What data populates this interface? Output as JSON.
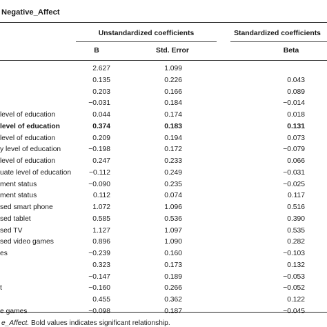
{
  "table_title": "Negative_Affect",
  "group_headers": {
    "unstandardized": "Unstandardized coefficients",
    "standardized": "Standardized coefficients"
  },
  "columns": {
    "b": "B",
    "se": "Std. Error",
    "beta": "Beta"
  },
  "rows": [
    {
      "label": "",
      "b": "2.627",
      "se": "1.099",
      "beta": "",
      "bold": false
    },
    {
      "label": "",
      "b": "0.135",
      "se": "0.226",
      "beta": "0.043",
      "bold": false
    },
    {
      "label": "",
      "b": "0.203",
      "se": "0.166",
      "beta": "0.089",
      "bold": false
    },
    {
      "label": "",
      "b": "−0.031",
      "se": "0.184",
      "beta": "−0.014",
      "bold": false
    },
    {
      "label": "level of education",
      "b": "0.044",
      "se": "0.174",
      "beta": "0.018",
      "bold": false
    },
    {
      "label": "level of education",
      "b": "0.374",
      "se": "0.183",
      "beta": "0.131",
      "bold": true
    },
    {
      "label": "level of education",
      "b": "0.209",
      "se": "0.194",
      "beta": "0.073",
      "bold": false
    },
    {
      "label": "y level of education",
      "b": "−0.198",
      "se": "0.172",
      "beta": "−0.079",
      "bold": false
    },
    {
      "label": "level of education",
      "b": "0.247",
      "se": "0.233",
      "beta": "0.066",
      "bold": false
    },
    {
      "label": "uate level of education",
      "b": "−0.112",
      "se": "0.249",
      "beta": "−0.031",
      "bold": false
    },
    {
      "label": "ment status",
      "b": "−0.090",
      "se": "0.235",
      "beta": "−0.025",
      "bold": false
    },
    {
      "label": "ment status",
      "b": "0.112",
      "se": "0.074",
      "beta": "0.117",
      "bold": false
    },
    {
      "label": "sed smart phone",
      "b": "1.072",
      "se": "1.096",
      "beta": "0.516",
      "bold": false
    },
    {
      "label": "sed tablet",
      "b": "0.585",
      "se": "0.536",
      "beta": "0.390",
      "bold": false
    },
    {
      "label": "sed TV",
      "b": "1.127",
      "se": "1.097",
      "beta": "0.535",
      "bold": false
    },
    {
      "label": "sed video games",
      "b": "0.896",
      "se": "1.090",
      "beta": "0.282",
      "bold": false
    },
    {
      "label": "es",
      "b": "−0.239",
      "se": "0.160",
      "beta": "−0.103",
      "bold": false
    },
    {
      "label": "",
      "b": "0.323",
      "se": "0.173",
      "beta": "0.132",
      "bold": false
    },
    {
      "label": "",
      "b": "−0.147",
      "se": "0.189",
      "beta": "−0.053",
      "bold": false
    },
    {
      "label": "t",
      "b": "−0.160",
      "se": "0.266",
      "beta": "−0.052",
      "bold": false
    },
    {
      "label": "",
      "b": "0.455",
      "se": "0.362",
      "beta": "0.122",
      "bold": false
    },
    {
      "label": "e games",
      "b": "−0.098",
      "se": "0.187",
      "beta": "−0.045",
      "bold": false
    }
  ],
  "footnote": {
    "italic": "e_Affect.",
    "rest": " Bold values indicates significant relationship."
  }
}
